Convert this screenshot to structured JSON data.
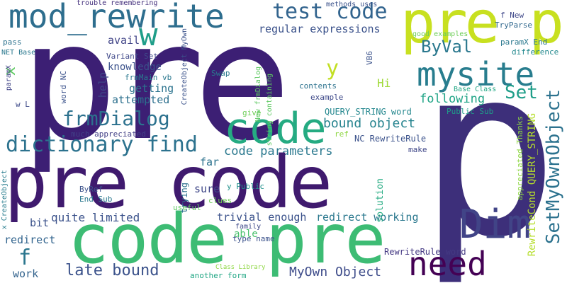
{
  "words": [
    {
      "text": "pre",
      "color": "#3c1f74"
    },
    {
      "text": "pre p",
      "color": "#c8e020"
    },
    {
      "text": "mod_rewrite",
      "color": "#2e6e8e"
    },
    {
      "text": "test code",
      "color": "#32648e"
    },
    {
      "text": "w",
      "color": "#1f9e89"
    },
    {
      "text": "mysite",
      "color": "#287d8e"
    },
    {
      "text": "ByVal",
      "color": "#2a788e"
    },
    {
      "text": "regular expressions",
      "color": "#3b528b"
    },
    {
      "text": "avail",
      "color": "#414487"
    },
    {
      "text": "Set",
      "color": "#1f9e89"
    },
    {
      "text": "code",
      "color": "#25ab82"
    },
    {
      "text": "frmDialog",
      "color": "#2c718e"
    },
    {
      "text": "dictionary find",
      "color": "#2c728e"
    },
    {
      "text": "bound object",
      "color": "#25838e"
    },
    {
      "text": "code parameters",
      "color": "#2a788e"
    },
    {
      "text": "pre code",
      "color": "#3f1a6e"
    },
    {
      "text": "p",
      "color": "#3d2f7a"
    },
    {
      "text": "code pre",
      "color": "#3dbc74"
    },
    {
      "text": "Dim",
      "color": "#414487"
    },
    {
      "text": "need",
      "color": "#440154"
    },
    {
      "text": "late bound",
      "color": "#3b528b"
    },
    {
      "text": "MyOwn Object",
      "color": "#3e4c8a"
    },
    {
      "text": "SetMyOwnObject",
      "color": "#2c728e"
    },
    {
      "text": "y",
      "color": "#c2df23"
    },
    {
      "text": "f",
      "color": "#2a768e"
    },
    {
      "text": "x",
      "color": "#5ec962"
    },
    {
      "text": "Hi",
      "color": "#a0da39"
    },
    {
      "text": "following",
      "color": "#20a486"
    },
    {
      "text": "knowledge",
      "color": "#3b528b"
    },
    {
      "text": "getting",
      "color": "#2c738e"
    },
    {
      "text": "attempted",
      "color": "#2d708e"
    },
    {
      "text": "help",
      "color": "#3f4788"
    },
    {
      "text": "frmMain vb",
      "color": "#2a788e"
    },
    {
      "text": "Variant Set",
      "color": "#3f4889"
    },
    {
      "text": "trouble remembering",
      "color": "#46327e"
    },
    {
      "text": "methods uses",
      "color": "#3b528b"
    },
    {
      "text": "f New",
      "color": "#3f4889"
    },
    {
      "text": "TryParse",
      "color": "#31688e"
    },
    {
      "text": "pass",
      "color": "#2c728e"
    },
    {
      "text": "NET Base",
      "color": "#2a788e"
    },
    {
      "text": "paramX End",
      "color": "#2a788e"
    },
    {
      "text": "difference",
      "color": "#23898e"
    },
    {
      "text": "good examples",
      "color": "#6ece58"
    },
    {
      "text": "VB6",
      "color": "#3b528b"
    },
    {
      "text": "Swap",
      "color": "#2a788e"
    },
    {
      "text": "contents",
      "color": "#2c728e"
    },
    {
      "text": "example",
      "color": "#3e4989"
    },
    {
      "text": "Base Class",
      "color": "#22a785"
    },
    {
      "text": "Public Sub",
      "color": "#1f9e89"
    },
    {
      "text": "QUERY_STRING word",
      "color": "#24878e"
    },
    {
      "text": "give",
      "color": "#6ece58"
    },
    {
      "text": "ref",
      "color": "#8fd744"
    },
    {
      "text": "NC RewriteRule",
      "color": "#3b528b"
    },
    {
      "text": "make",
      "color": "#3f4788"
    },
    {
      "text": "much appreciated",
      "color": "#424086"
    },
    {
      "text": "far",
      "color": "#2c728e"
    },
    {
      "text": "sure",
      "color": "#3f4788"
    },
    {
      "text": "trying",
      "color": "#2c718e"
    },
    {
      "text": "clues",
      "color": "#6ece58"
    },
    {
      "text": "ByRef",
      "color": "#3b528b"
    },
    {
      "text": "End Sub",
      "color": "#2a788e"
    },
    {
      "text": "y Public",
      "color": "#21918c"
    },
    {
      "text": "useful",
      "color": "#5ec962"
    },
    {
      "text": "quite limited",
      "color": "#3b528b"
    },
    {
      "text": "trivial enough",
      "color": "#3b528b"
    },
    {
      "text": "redirect working",
      "color": "#2a788e"
    },
    {
      "text": "solution",
      "color": "#25ab82"
    },
    {
      "text": "bit",
      "color": "#3b528b"
    },
    {
      "text": "able",
      "color": "#4ac16d"
    },
    {
      "text": "family",
      "color": "#3e4a89"
    },
    {
      "text": "type name",
      "color": "#3b528b"
    },
    {
      "text": "redirect",
      "color": "#32648e"
    },
    {
      "text": "RewriteRule word",
      "color": "#443983"
    },
    {
      "text": "work",
      "color": "#33638d"
    },
    {
      "text": "another form",
      "color": "#22a785"
    },
    {
      "text": "Class Library",
      "color": "#8fd744"
    },
    {
      "text": "paramX",
      "color": "#414487"
    },
    {
      "text": "w L",
      "color": "#3e4a89"
    },
    {
      "text": "word NC",
      "color": "#3b528b"
    },
    {
      "text": "CreateObject MyOwn",
      "color": "#3b528b"
    },
    {
      "text": "New frmDialog",
      "color": "#5ec962"
    },
    {
      "text": "string containing",
      "color": "#5ec962"
    },
    {
      "text": "x CreateObject",
      "color": "#287d8e"
    },
    {
      "text": "appreciated Thanks",
      "color": "#8fd744"
    },
    {
      "text": "RewriteCond QUERY_STRING",
      "color": "#b5de2b"
    }
  ]
}
